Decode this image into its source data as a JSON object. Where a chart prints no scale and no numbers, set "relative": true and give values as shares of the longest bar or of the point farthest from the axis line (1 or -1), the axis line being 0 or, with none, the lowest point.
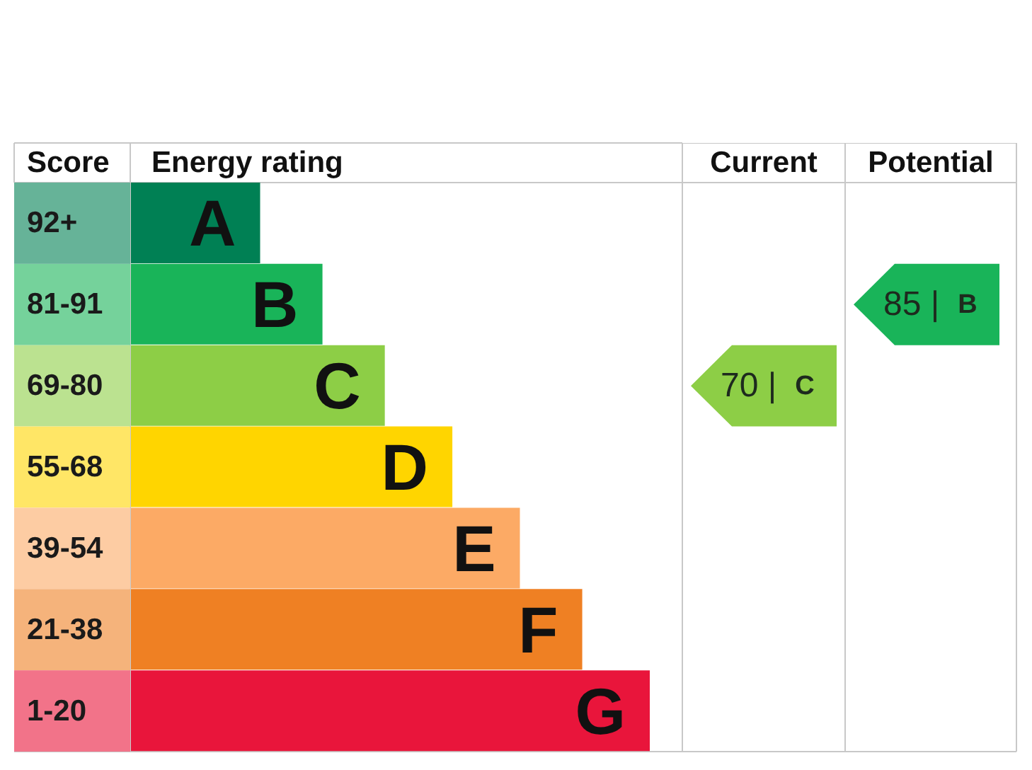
{
  "chart_data": [
    {
      "type": "bar",
      "orientation": "horizontal",
      "relative": true,
      "ylabel": "Score",
      "xlabel": "Energy rating",
      "categories": [
        "92+",
        "81-91",
        "69-80",
        "55-68",
        "39-54",
        "21-38",
        "1-20"
      ],
      "values": [
        0.25,
        0.37,
        0.49,
        0.62,
        0.75,
        0.87,
        1
      ],
      "colors": [
        "#008054",
        "#19b459",
        "#8dce46",
        "#ffd500",
        "#fcaa65",
        "#ef8023",
        "#e9153b"
      ],
      "annotations": [
        {
          "text": "A",
          "x": 0.25,
          "y": "92+"
        },
        {
          "text": "B",
          "x": 0.37,
          "y": "81-91"
        },
        {
          "text": "C",
          "x": 0.49,
          "y": "69-80"
        },
        {
          "text": "D",
          "x": 0.62,
          "y": "55-68"
        },
        {
          "text": "E",
          "x": 0.75,
          "y": "39-54"
        },
        {
          "text": "F",
          "x": 0.87,
          "y": "21-38"
        },
        {
          "text": "G",
          "x": 1,
          "y": "1-20"
        }
      ]
    },
    {
      "type": "other",
      "title": "Current",
      "annotations": [
        "70 | C"
      ]
    },
    {
      "type": "other",
      "title": "Potential",
      "annotations": [
        "85 | B"
      ]
    }
  ]
}
